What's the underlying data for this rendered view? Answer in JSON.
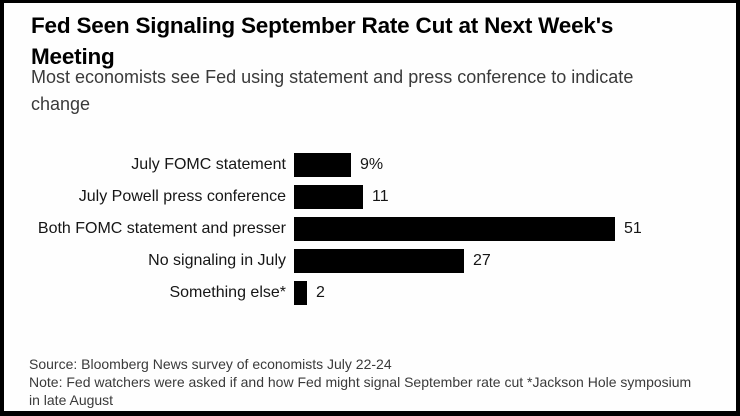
{
  "colors": {
    "frame_border": "#000000",
    "background": "#fefefe",
    "bar": "#000000",
    "title_text": "#000000",
    "subtitle_text": "#3a3a3a",
    "label_text": "#161616",
    "footer_text": "#3a3a3a"
  },
  "header": {
    "title": "Fed Seen Signaling September Rate Cut at Next Week's Meeting",
    "title_lines": [
      "Fed Seen Signaling September Rate Cut at Next Week's",
      "Meeting"
    ],
    "subtitle": "Most economists see Fed using statement and press conference to indicate change",
    "subtitle_lines": [
      "Most economists see Fed using statement and press conference to indicate",
      "change"
    ]
  },
  "chart_data": {
    "type": "bar",
    "orientation": "horizontal",
    "title": "Fed Seen Signaling September Rate Cut at Next Week's Meeting",
    "subtitle": "Most economists see Fed using statement and press conference to indicate change",
    "categories": [
      "July FOMC statement",
      "July Powell press conference",
      "Both FOMC statement and presser",
      "No signaling in July",
      "Something else*"
    ],
    "values": [
      9,
      11,
      51,
      27,
      2
    ],
    "value_labels": [
      "9%",
      "11",
      "51",
      "27",
      "2"
    ],
    "bar_color": "#000000",
    "xlim": [
      0,
      51
    ],
    "grid": false,
    "legend": false,
    "value_label_position": "right-of-bar"
  },
  "footer": {
    "source": "Source: Bloomberg News survey of economists July 22-24",
    "note": "Note: Fed watchers were asked if and how Fed might signal September rate cut *Jackson Hole symposium in late August",
    "note_lines": [
      "Note: Fed watchers were asked if and how Fed might signal September rate cut *Jackson Hole symposium",
      "in late August"
    ]
  }
}
